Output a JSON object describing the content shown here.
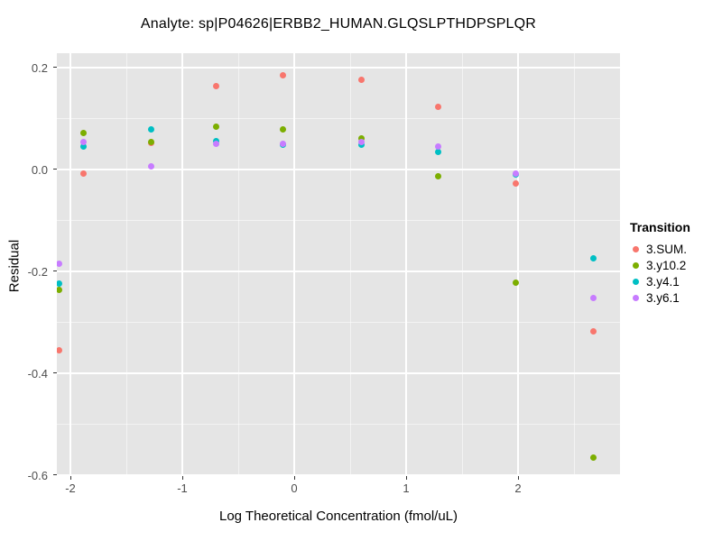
{
  "title": "Analyte: sp|P04626|ERBB2_HUMAN.GLQSLPTHDPSPLQR",
  "chart_data": {
    "type": "scatter",
    "title": "Analyte: sp|P04626|ERBB2_HUMAN.GLQSLPTHDPSPLQR",
    "xlabel": "Log Theoretical Concentration (fmol/uL)",
    "ylabel": "Residual",
    "xlim": [
      -2.121,
      2.911
    ],
    "ylim": [
      -0.602,
      0.228
    ],
    "grid": true,
    "panel_background": "#E5E5E5",
    "x_major_ticks": [
      -2,
      -1,
      0,
      1,
      2
    ],
    "x_tick_labels": [
      "-2",
      "-1",
      "0",
      "1",
      "2"
    ],
    "x_minor_ticks": [
      -1.5,
      -0.5,
      0.5,
      1.5,
      2.5
    ],
    "y_major_ticks": [
      0.2,
      0.0,
      -0.2,
      -0.4,
      -0.6
    ],
    "y_tick_labels": [
      "0.2",
      "0.0",
      "-0.2",
      "-0.4",
      "-0.6"
    ],
    "y_minor_ticks": [
      0.1,
      -0.1,
      -0.3,
      -0.5
    ],
    "legend_title": "Transition",
    "legend_position": "right",
    "series": [
      {
        "name": "3.SUM.",
        "color": "#F8766D",
        "points": [
          [
            -2.1,
            -0.355
          ],
          [
            -1.88,
            -0.009
          ],
          [
            -1.28,
            0.052
          ],
          [
            -0.7,
            0.163
          ],
          [
            -0.1,
            0.185
          ],
          [
            0.6,
            0.175
          ],
          [
            1.29,
            0.123
          ],
          [
            1.98,
            -0.028
          ],
          [
            2.67,
            -0.318
          ]
        ]
      },
      {
        "name": "3.y10.2",
        "color": "#7CAE00",
        "points": [
          [
            -2.1,
            -0.236
          ],
          [
            -1.88,
            0.071
          ],
          [
            -1.28,
            0.053
          ],
          [
            -0.7,
            0.084
          ],
          [
            -0.1,
            0.078
          ],
          [
            0.6,
            0.06
          ],
          [
            1.29,
            -0.013
          ],
          [
            1.98,
            -0.223
          ],
          [
            2.67,
            -0.566
          ]
        ]
      },
      {
        "name": "3.y4.1",
        "color": "#00BFC4",
        "points": [
          [
            -2.1,
            -0.225
          ],
          [
            -1.88,
            0.044
          ],
          [
            -1.28,
            0.078
          ],
          [
            -0.7,
            0.055
          ],
          [
            -0.1,
            0.049
          ],
          [
            0.6,
            0.048
          ],
          [
            1.29,
            0.035
          ],
          [
            1.98,
            -0.01
          ],
          [
            2.67,
            -0.175
          ]
        ]
      },
      {
        "name": "3.y6.1",
        "color": "#C77CFF",
        "points": [
          [
            -2.1,
            -0.186
          ],
          [
            -1.88,
            0.053
          ],
          [
            -1.28,
            0.006
          ],
          [
            -0.7,
            0.05
          ],
          [
            -0.1,
            0.051
          ],
          [
            0.6,
            0.053
          ],
          [
            1.29,
            0.044
          ],
          [
            1.98,
            -0.009
          ],
          [
            2.67,
            -0.252
          ]
        ]
      }
    ]
  }
}
